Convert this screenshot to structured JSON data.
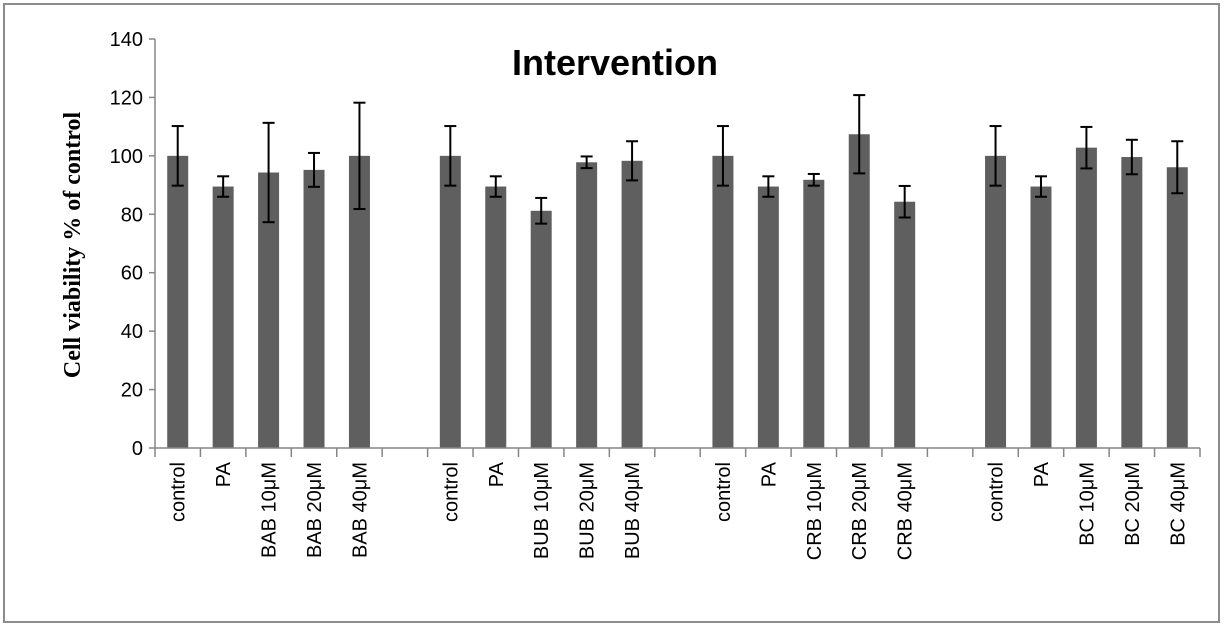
{
  "chart_data": {
    "type": "bar",
    "title": "Intervention",
    "ylabel": "Cell viability % of control",
    "xlabel": "",
    "ylim": [
      0,
      140
    ],
    "yticks": [
      0,
      20,
      40,
      60,
      80,
      100,
      120,
      140
    ],
    "grid": false,
    "legend": "none",
    "bar_color": "#5f5f5f",
    "categories": [
      "control",
      "PA",
      "BAB 10μM",
      "BAB 20μM",
      "BAB 40μM",
      "",
      "control",
      "PA",
      "BUB 10μM",
      "BUB 20μM",
      "BUB 40μM",
      "",
      "control",
      "PA",
      "CRB 10μM",
      "CRB 20μM",
      "CRB 40μM",
      "",
      "control",
      "PA",
      "BC 10μM",
      "BC 20μM",
      "BC 40μM"
    ],
    "values": [
      100,
      89.5,
      94.3,
      95.2,
      100,
      null,
      100,
      89.5,
      81.2,
      97.8,
      98.3,
      null,
      100,
      89.5,
      91.8,
      107.4,
      84.3,
      null,
      100,
      89.5,
      102.8,
      99.6,
      96.1
    ],
    "errors": [
      10.2,
      3.5,
      17.0,
      5.8,
      18.2,
      null,
      10.2,
      3.5,
      4.4,
      2.0,
      6.7,
      null,
      10.2,
      3.5,
      2.0,
      13.4,
      5.4,
      null,
      10.2,
      3.5,
      7.1,
      5.9,
      8.9
    ]
  }
}
